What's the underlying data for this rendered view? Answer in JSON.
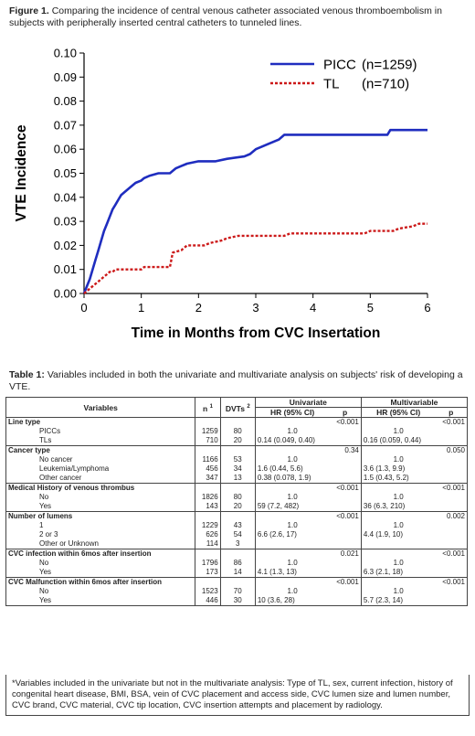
{
  "figure": {
    "label": "Figure 1.",
    "caption": "Comparing the incidence of central venous catheter associated venous thromboembolism in subjects with peripherally inserted central catheters to tunneled lines."
  },
  "chart_data": {
    "type": "line",
    "xlabel": "Time in Months from CVC Insertation",
    "ylabel": "VTE Incidence",
    "xlim": [
      0,
      6
    ],
    "ylim": [
      0,
      0.1
    ],
    "xticks": [
      "0",
      "1",
      "2",
      "3",
      "4",
      "5",
      "6"
    ],
    "yticks": [
      "0.00",
      "0.01",
      "0.02",
      "0.03",
      "0.04",
      "0.05",
      "0.06",
      "0.07",
      "0.08",
      "0.09",
      "0.10"
    ],
    "legend_position": "top-right",
    "series": [
      {
        "name": "PICC",
        "n_label": "(n=1259)",
        "color": "#1f2dbf",
        "style": "solid",
        "points": [
          [
            0,
            0
          ],
          [
            0.05,
            0.003
          ],
          [
            0.1,
            0.006
          ],
          [
            0.15,
            0.01
          ],
          [
            0.2,
            0.014
          ],
          [
            0.25,
            0.018
          ],
          [
            0.3,
            0.022
          ],
          [
            0.35,
            0.026
          ],
          [
            0.4,
            0.029
          ],
          [
            0.45,
            0.032
          ],
          [
            0.5,
            0.035
          ],
          [
            0.55,
            0.037
          ],
          [
            0.6,
            0.039
          ],
          [
            0.65,
            0.041
          ],
          [
            0.7,
            0.042
          ],
          [
            0.75,
            0.043
          ],
          [
            0.8,
            0.044
          ],
          [
            0.9,
            0.046
          ],
          [
            1.0,
            0.047
          ],
          [
            1.05,
            0.048
          ],
          [
            1.15,
            0.049
          ],
          [
            1.3,
            0.05
          ],
          [
            1.5,
            0.05
          ],
          [
            1.55,
            0.051
          ],
          [
            1.6,
            0.052
          ],
          [
            1.7,
            0.053
          ],
          [
            1.8,
            0.054
          ],
          [
            2.0,
            0.055
          ],
          [
            2.3,
            0.055
          ],
          [
            2.5,
            0.056
          ],
          [
            2.8,
            0.057
          ],
          [
            2.9,
            0.058
          ],
          [
            3.0,
            0.06
          ],
          [
            3.1,
            0.061
          ],
          [
            3.2,
            0.062
          ],
          [
            3.3,
            0.063
          ],
          [
            3.4,
            0.064
          ],
          [
            3.5,
            0.066
          ],
          [
            3.7,
            0.066
          ],
          [
            5.0,
            0.066
          ],
          [
            5.3,
            0.066
          ],
          [
            5.35,
            0.068
          ],
          [
            6.0,
            0.068
          ]
        ]
      },
      {
        "name": "TL",
        "n_label": "(n=710)",
        "color": "#cc1a1a",
        "style": "dotted",
        "points": [
          [
            0,
            0
          ],
          [
            0.05,
            0.001
          ],
          [
            0.1,
            0.002
          ],
          [
            0.15,
            0.003
          ],
          [
            0.2,
            0.004
          ],
          [
            0.25,
            0.005
          ],
          [
            0.3,
            0.006
          ],
          [
            0.35,
            0.007
          ],
          [
            0.4,
            0.008
          ],
          [
            0.45,
            0.009
          ],
          [
            0.5,
            0.009
          ],
          [
            0.55,
            0.01
          ],
          [
            1.0,
            0.01
          ],
          [
            1.05,
            0.011
          ],
          [
            1.5,
            0.011
          ],
          [
            1.55,
            0.017
          ],
          [
            1.7,
            0.018
          ],
          [
            1.8,
            0.02
          ],
          [
            2.1,
            0.02
          ],
          [
            2.2,
            0.021
          ],
          [
            2.4,
            0.022
          ],
          [
            2.5,
            0.023
          ],
          [
            2.7,
            0.024
          ],
          [
            3.5,
            0.024
          ],
          [
            3.6,
            0.025
          ],
          [
            4.9,
            0.025
          ],
          [
            5.0,
            0.026
          ],
          [
            5.4,
            0.026
          ],
          [
            5.5,
            0.027
          ],
          [
            5.75,
            0.028
          ],
          [
            5.85,
            0.029
          ],
          [
            6.0,
            0.029
          ]
        ]
      }
    ]
  },
  "table": {
    "label": "Table 1:",
    "caption": "Variables included in both the univariate and multivariate analysis on subjects' risk of developing a VTE.",
    "headers": {
      "variables": "Variables",
      "n": "n",
      "n_sup": "1",
      "dvts": "DVTs",
      "dvts_sup": "2",
      "univariate": "Univariate",
      "multivariable": "Multivariable",
      "hr": "HR (95% CI)",
      "p": "p"
    },
    "sections": [
      {
        "title": "Line type",
        "p_uni": "<0.001",
        "p_multi": "<0.001",
        "rows": [
          {
            "label": "PICCs",
            "n": "1259",
            "dvt": "80",
            "hr_uni": "1.0",
            "hr_multi": "1.0"
          },
          {
            "label": "TLs",
            "n": "710",
            "dvt": "20",
            "hr_uni": "0.14 (0.049, 0.40)",
            "hr_multi": "0.16 (0.059, 0.44)"
          }
        ]
      },
      {
        "title": "Cancer type",
        "p_uni": "0.34",
        "p_multi": "0.050",
        "rows": [
          {
            "label": "No cancer",
            "n": "1166",
            "dvt": "53",
            "hr_uni": "1.0",
            "hr_multi": "1.0"
          },
          {
            "label": "Leukemia/Lymphoma",
            "n": "456",
            "dvt": "34",
            "hr_uni": "1.6 (0.44, 5.6)",
            "hr_multi": "3.6 (1.3, 9.9)"
          },
          {
            "label": "Other cancer",
            "n": "347",
            "dvt": "13",
            "hr_uni": "0.38 (0.078, 1.9)",
            "hr_multi": "1.5 (0.43, 5.2)"
          }
        ]
      },
      {
        "title": "Medical History of venous thrombus",
        "p_uni": "<0.001",
        "p_multi": "<0.001",
        "rows": [
          {
            "label": "No",
            "n": "1826",
            "dvt": "80",
            "hr_uni": "1.0",
            "hr_multi": "1.0"
          },
          {
            "label": "Yes",
            "n": "143",
            "dvt": "20",
            "hr_uni": "59 (7.2, 482)",
            "hr_multi": "36 (6.3, 210)"
          }
        ]
      },
      {
        "title": "Number of lumens",
        "p_uni": "<0.001",
        "p_multi": "0.002",
        "rows": [
          {
            "label": "1",
            "n": "1229",
            "dvt": "43",
            "hr_uni": "1.0",
            "hr_multi": "1.0"
          },
          {
            "label": "2 or 3",
            "n": "626",
            "dvt": "54",
            "hr_uni": "6.6 (2.6, 17)",
            "hr_multi": "4.4 (1.9, 10)"
          },
          {
            "label": "Other or Unknown",
            "n": "114",
            "dvt": "3",
            "hr_uni": "",
            "hr_multi": ""
          }
        ]
      },
      {
        "title": "CVC infection within 6mos after insertion",
        "p_uni": "0.021",
        "p_multi": "<0.001",
        "rows": [
          {
            "label": "No",
            "n": "1796",
            "dvt": "86",
            "hr_uni": "1.0",
            "hr_multi": "1.0"
          },
          {
            "label": "Yes",
            "n": "173",
            "dvt": "14",
            "hr_uni": "4.1 (1.3, 13)",
            "hr_multi": "6.3 (2.1, 18)"
          }
        ]
      },
      {
        "title": "CVC Malfunction within 6mos after insertion",
        "p_uni": "<0.001",
        "p_multi": "<0.001",
        "rows": [
          {
            "label": "No",
            "n": "1523",
            "dvt": "70",
            "hr_uni": "1.0",
            "hr_multi": "1.0"
          },
          {
            "label": "Yes",
            "n": "446",
            "dvt": "30",
            "hr_uni": "10 (3.6, 28)",
            "hr_multi": "5.7 (2.3, 14)"
          }
        ]
      }
    ],
    "footnote": "*Variables included in the univariate but not in the multivariate analysis: Type of TL, sex, current infection, history of congenital heart disease, BMI, BSA, vein of CVC placement and access side, CVC lumen size and lumen number, CVC brand, CVC material, CVC tip location, CVC insertion attempts and placement by radiology."
  }
}
